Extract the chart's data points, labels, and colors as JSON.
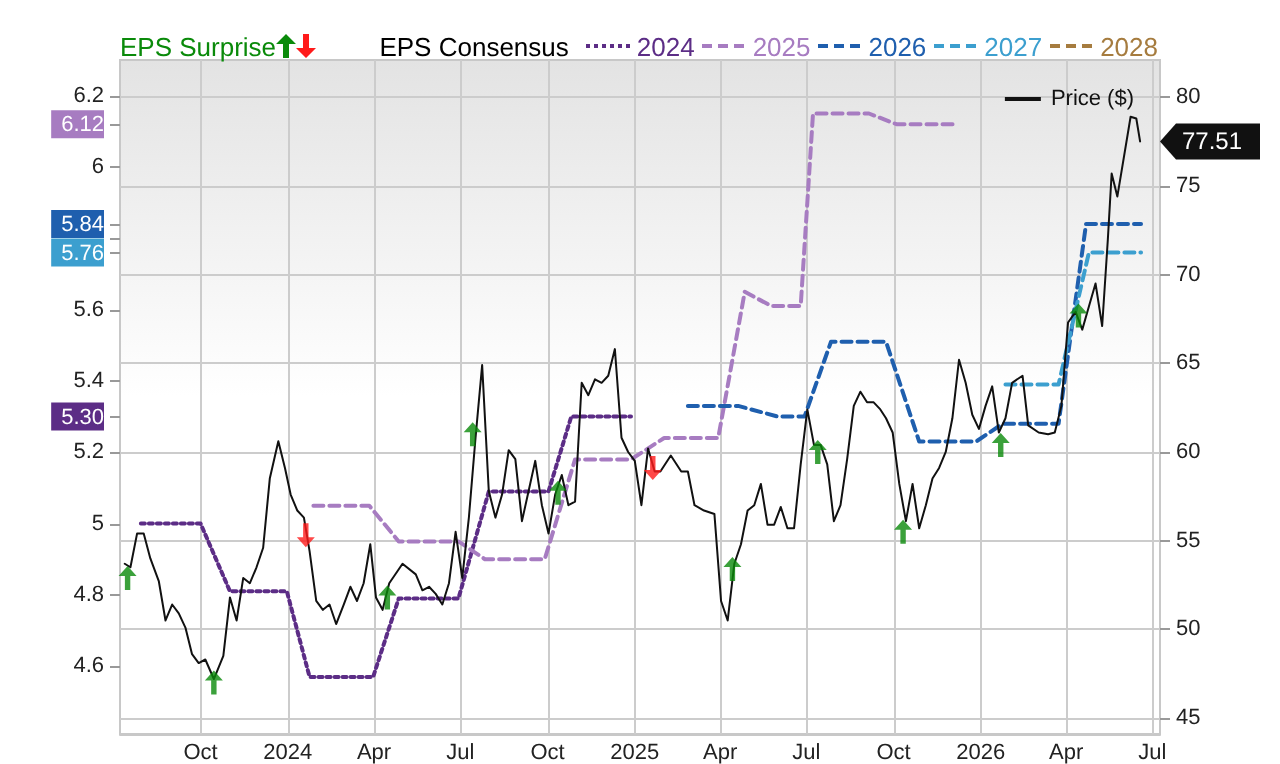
{
  "chart_data": {
    "type": "line",
    "legend_title": "EPS Consensus",
    "legend": "top",
    "grid": true,
    "xlim": [
      "2023-07-08",
      "2026-07-09"
    ],
    "xticks": [
      {
        "value": "2023-10-01",
        "label": "Oct"
      },
      {
        "value": "2024-01-01",
        "label": "2024"
      },
      {
        "value": "2024-04-01",
        "label": "Apr"
      },
      {
        "value": "2024-07-01",
        "label": "Jul"
      },
      {
        "value": "2024-10-01",
        "label": "Oct"
      },
      {
        "value": "2025-01-01",
        "label": "2025"
      },
      {
        "value": "2025-04-01",
        "label": "Apr"
      },
      {
        "value": "2025-07-01",
        "label": "Jul"
      },
      {
        "value": "2025-10-01",
        "label": "Oct"
      },
      {
        "value": "2026-01-01",
        "label": "2026"
      },
      {
        "value": "2026-04-01",
        "label": "Apr"
      },
      {
        "value": "2026-07-01",
        "label": "Jul"
      }
    ],
    "ylim": [
      4.41,
      6.3
    ],
    "yticks": [
      4.6,
      4.8,
      5,
      5.2,
      {
        "value": 5.3,
        "label": "5.30"
      },
      5.4,
      5.6,
      {
        "value": 5.76,
        "label": "5.76"
      },
      {
        "value": 5.8,
        "label": null
      },
      {
        "value": 5.84,
        "label": "5.84"
      },
      6,
      {
        "value": 6.12,
        "label": "6.12"
      },
      6.2
    ],
    "y2lim": [
      44.1,
      82.1
    ],
    "y2ticks": [
      45,
      50,
      55,
      60,
      65,
      70,
      75,
      80
    ],
    "series": [
      {
        "name": "2024",
        "color": "#5c2d86",
        "line_style": "dotted",
        "x": [
          "2023-07-30",
          "2023-10-01",
          "2023-11-01",
          "2023-12-31",
          "2024-01-24",
          "2024-03-31",
          "2024-04-27",
          "2024-06-29",
          "2024-07-31",
          "2024-10-02",
          "2024-10-26",
          "2024-12-28"
        ],
        "values": [
          5.0,
          5.0,
          4.81,
          4.81,
          4.57,
          4.57,
          4.79,
          4.79,
          5.09,
          5.09,
          5.3,
          5.3
        ]
      },
      {
        "name": "2025",
        "color": "#a77cc1",
        "line_style": "dashed",
        "x": [
          "2024-01-28",
          "2024-03-27",
          "2024-04-27",
          "2024-06-29",
          "2024-07-27",
          "2024-09-28",
          "2024-10-30",
          "2024-12-28",
          "2025-02-01",
          "2025-03-30",
          "2025-04-27",
          "2025-05-25",
          "2025-06-25",
          "2025-07-08",
          "2025-09-05",
          "2025-10-04",
          "2025-12-06"
        ],
        "values": [
          5.05,
          5.05,
          4.95,
          4.95,
          4.9,
          4.9,
          5.18,
          5.18,
          5.24,
          5.24,
          5.65,
          5.61,
          5.61,
          6.15,
          6.15,
          6.12,
          6.12
        ]
      },
      {
        "name": "2026",
        "color": "#1f5fae",
        "line_style": "dashed",
        "x": [
          "2025-02-26",
          "2025-04-20",
          "2025-06-01",
          "2025-06-29",
          "2025-07-27",
          "2025-09-23",
          "2025-10-28",
          "2025-12-27",
          "2026-01-24",
          "2026-03-24",
          "2026-04-22",
          "2026-06-19"
        ],
        "values": [
          5.33,
          5.33,
          5.3,
          5.3,
          5.51,
          5.51,
          5.23,
          5.23,
          5.28,
          5.28,
          5.84,
          5.84
        ]
      },
      {
        "name": "2027",
        "color": "#3c9fcf",
        "line_style": "dashed",
        "x": [
          "2026-01-27",
          "2026-03-24",
          "2026-04-25",
          "2026-06-19"
        ],
        "values": [
          5.39,
          5.39,
          5.76,
          5.76
        ]
      },
      {
        "name": "2028",
        "color": "#a67c3f",
        "line_style": "dashed"
      },
      {
        "name": "Price ($)",
        "color": "#111111",
        "axis": "y2",
        "line_style": "solid",
        "x": [
          "2023-07-13",
          "2023-07-19",
          "2023-07-26",
          "2023-08-02",
          "2023-08-09",
          "2023-08-18",
          "2023-08-25",
          "2023-09-01",
          "2023-09-08",
          "2023-09-15",
          "2023-09-22",
          "2023-09-29",
          "2023-10-06",
          "2023-10-15",
          "2023-10-25",
          "2023-11-01",
          "2023-11-08",
          "2023-11-15",
          "2023-11-22",
          "2023-11-29",
          "2023-12-06",
          "2023-12-13",
          "2023-12-22",
          "2023-12-29",
          "2024-01-04",
          "2024-01-11",
          "2024-01-18",
          "2024-01-24",
          "2024-01-31",
          "2024-02-07",
          "2024-02-14",
          "2024-02-21",
          "2024-02-29",
          "2024-03-07",
          "2024-03-14",
          "2024-03-21",
          "2024-03-28",
          "2024-04-03",
          "2024-04-10",
          "2024-04-17",
          "2024-05-01",
          "2024-05-15",
          "2024-05-22",
          "2024-05-29",
          "2024-06-05",
          "2024-06-12",
          "2024-06-19",
          "2024-06-26",
          "2024-07-03",
          "2024-07-10",
          "2024-07-17",
          "2024-07-24",
          "2024-07-31",
          "2024-08-07",
          "2024-08-14",
          "2024-08-21",
          "2024-08-28",
          "2024-09-04",
          "2024-09-11",
          "2024-09-18",
          "2024-09-25",
          "2024-10-02",
          "2024-10-09",
          "2024-10-16",
          "2024-10-23",
          "2024-10-30",
          "2024-11-06",
          "2024-11-13",
          "2024-11-20",
          "2024-11-27",
          "2024-12-04",
          "2024-12-11",
          "2024-12-18",
          "2024-12-25",
          "2025-01-01",
          "2025-01-08",
          "2025-01-15",
          "2025-01-22",
          "2025-01-28",
          "2025-02-08",
          "2025-02-19",
          "2025-02-26",
          "2025-03-05",
          "2025-03-15",
          "2025-03-26",
          "2025-04-02",
          "2025-04-09",
          "2025-04-16",
          "2025-04-23",
          "2025-04-30",
          "2025-05-07",
          "2025-05-14",
          "2025-05-21",
          "2025-05-28",
          "2025-06-04",
          "2025-06-11",
          "2025-06-18",
          "2025-06-25",
          "2025-07-02",
          "2025-07-09",
          "2025-07-16",
          "2025-07-23",
          "2025-07-30",
          "2025-08-06",
          "2025-08-13",
          "2025-08-20",
          "2025-08-27",
          "2025-09-03",
          "2025-09-10",
          "2025-09-17",
          "2025-09-23",
          "2025-09-30",
          "2025-10-07",
          "2025-10-14",
          "2025-10-21",
          "2025-10-28",
          "2025-11-04",
          "2025-11-11",
          "2025-11-18",
          "2025-11-25",
          "2025-12-02",
          "2025-12-09",
          "2025-12-16",
          "2025-12-23",
          "2025-12-30",
          "2026-01-06",
          "2026-01-13",
          "2026-01-20",
          "2026-01-27",
          "2026-02-03",
          "2026-02-14",
          "2026-02-20",
          "2026-03-03",
          "2026-03-13",
          "2026-03-20",
          "2026-03-27",
          "2026-04-03",
          "2026-04-11",
          "2026-04-18",
          "2026-04-25",
          "2026-05-02",
          "2026-05-09",
          "2026-05-15",
          "2026-05-19",
          "2026-05-25",
          "2026-06-08",
          "2026-06-14",
          "2026-06-18"
        ],
        "values": [
          53.7,
          53.5,
          55.4,
          55.4,
          54.0,
          52.7,
          50.5,
          51.4,
          50.9,
          50.1,
          48.6,
          48.1,
          48.3,
          47.2,
          48.5,
          51.8,
          50.5,
          52.9,
          52.6,
          53.5,
          54.6,
          58.5,
          60.6,
          59.1,
          57.6,
          56.7,
          56.3,
          54.4,
          51.6,
          51.1,
          51.4,
          50.3,
          51.4,
          52.4,
          51.6,
          52.6,
          54.8,
          51.8,
          51.1,
          52.6,
          53.7,
          53.1,
          52.2,
          52.4,
          52.0,
          51.4,
          52.6,
          55.5,
          52.9,
          56.3,
          60.8,
          64.9,
          57.8,
          56.3,
          57.6,
          60.1,
          59.6,
          56.1,
          57.8,
          59.5,
          57.0,
          55.4,
          57.6,
          58.7,
          57.0,
          57.2,
          63.9,
          63.2,
          64.1,
          63.9,
          64.3,
          65.8,
          60.8,
          60.0,
          59.5,
          57.0,
          60.2,
          58.9,
          58.9,
          59.8,
          58.9,
          58.9,
          57.0,
          56.7,
          56.5,
          51.6,
          50.5,
          53.7,
          54.8,
          56.7,
          57.0,
          58.2,
          55.9,
          55.9,
          56.9,
          55.7,
          55.7,
          59.3,
          62.4,
          60.4,
          60.4,
          59.3,
          56.1,
          57.0,
          59.6,
          62.6,
          63.4,
          62.8,
          62.8,
          62.4,
          61.9,
          61.1,
          58.2,
          56.1,
          58.2,
          55.7,
          57.0,
          58.5,
          59.1,
          60.0,
          61.9,
          65.2,
          63.9,
          62.1,
          61.3,
          62.6,
          63.7,
          61.1,
          61.9,
          63.9,
          64.3,
          61.5,
          61.1,
          61.0,
          61.1,
          62.6,
          67.3,
          67.9,
          66.9,
          68.2,
          69.5,
          67.1,
          72.0,
          75.7,
          74.4,
          78.9,
          78.8,
          77.51
        ],
        "value_labels": [
          null,
          null,
          null,
          null,
          null,
          null,
          null,
          null,
          null,
          null,
          null,
          null,
          null,
          null,
          null,
          null,
          null,
          null,
          null,
          null,
          null,
          null,
          null,
          null,
          null,
          null,
          null,
          null,
          null,
          null,
          null,
          null,
          null,
          null,
          null,
          null,
          null,
          null,
          null,
          null,
          null,
          null,
          null,
          null,
          null,
          null,
          null,
          null,
          null,
          null,
          null,
          null,
          null,
          null,
          null,
          null,
          null,
          null,
          null,
          null,
          null,
          null,
          null,
          null,
          null,
          null,
          null,
          null,
          null,
          null,
          null,
          null,
          null,
          null,
          null,
          null,
          null,
          null,
          null,
          null,
          null,
          null,
          null,
          null,
          null,
          null,
          null,
          null,
          null,
          null,
          null,
          null,
          null,
          null,
          null,
          null,
          null,
          null,
          null,
          null,
          null,
          null,
          null,
          null,
          null,
          null,
          null,
          null,
          null,
          null,
          null,
          null,
          null,
          null,
          null,
          null,
          null,
          null,
          null,
          null,
          null,
          null,
          null,
          null,
          null,
          null,
          null,
          null,
          null,
          null,
          null,
          null,
          null,
          null,
          null,
          null,
          null,
          null,
          null,
          null,
          null,
          null,
          null,
          null,
          null,
          null,
          null,
          "77.51"
        ]
      },
      {
        "name": "EPS Surprise",
        "type": "scatter",
        "color": "#0a8a0a",
        "marker": "triangle",
        "axis": "y2",
        "x": [
          "2023-07-16",
          "2023-10-15",
          "2024-04-15",
          "2024-07-14",
          "2024-10-12",
          "2025-04-14",
          "2025-07-13",
          "2025-10-11",
          "2026-01-22",
          "2026-04-14"
        ],
        "values": [
          52.9,
          47.0,
          51.8,
          61.0,
          57.7,
          53.4,
          60.0,
          55.5,
          60.4,
          67.7
        ]
      },
      {
        "type": "scatter",
        "color": "#ff1a1a",
        "marker": "triangle-down",
        "axis": "y2",
        "x": [
          "2024-01-20",
          "2025-01-20"
        ],
        "values": [
          55.3,
          59.1
        ]
      }
    ]
  }
}
